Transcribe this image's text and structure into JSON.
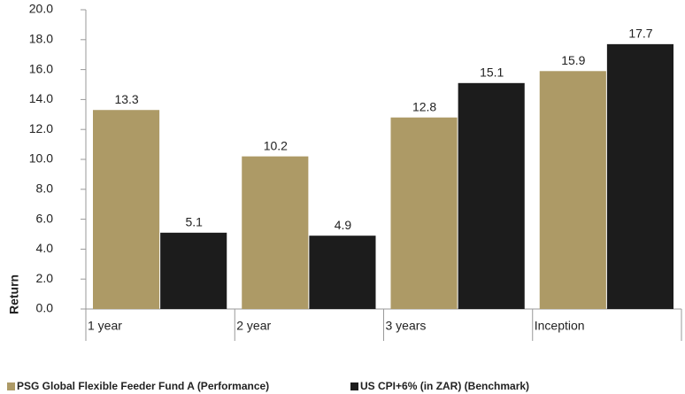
{
  "chart_data": {
    "type": "bar",
    "categories": [
      "1 year",
      "2 year",
      "3 years",
      "Inception"
    ],
    "series": [
      {
        "name": "PSG Global Flexible Feeder Fund A (Performance)",
        "color": "#ad9a66",
        "values": [
          13.3,
          10.2,
          12.8,
          15.9
        ]
      },
      {
        "name": "US CPI+6% (in ZAR) (Benchmark)",
        "color": "#1c1c1c",
        "values": [
          5.1,
          4.9,
          15.1,
          17.7
        ]
      }
    ],
    "y_label": "Return",
    "ylim": [
      0,
      20
    ],
    "yticks": [
      {
        "value": 0,
        "label": "0.0"
      },
      {
        "value": 2,
        "label": "2.0"
      },
      {
        "value": 4,
        "label": "4.0"
      },
      {
        "value": 6,
        "label": "6.0"
      },
      {
        "value": 8,
        "label": "8.0"
      },
      {
        "value": 10,
        "label": "10.0"
      },
      {
        "value": 12,
        "label": "12.0"
      },
      {
        "value": 14,
        "label": "14.0"
      },
      {
        "value": 16,
        "label": "16.0"
      },
      {
        "value": 18,
        "label": "18.0"
      },
      {
        "value": 20,
        "label": "20.0"
      }
    ],
    "legend": "bottom",
    "grid": false
  }
}
